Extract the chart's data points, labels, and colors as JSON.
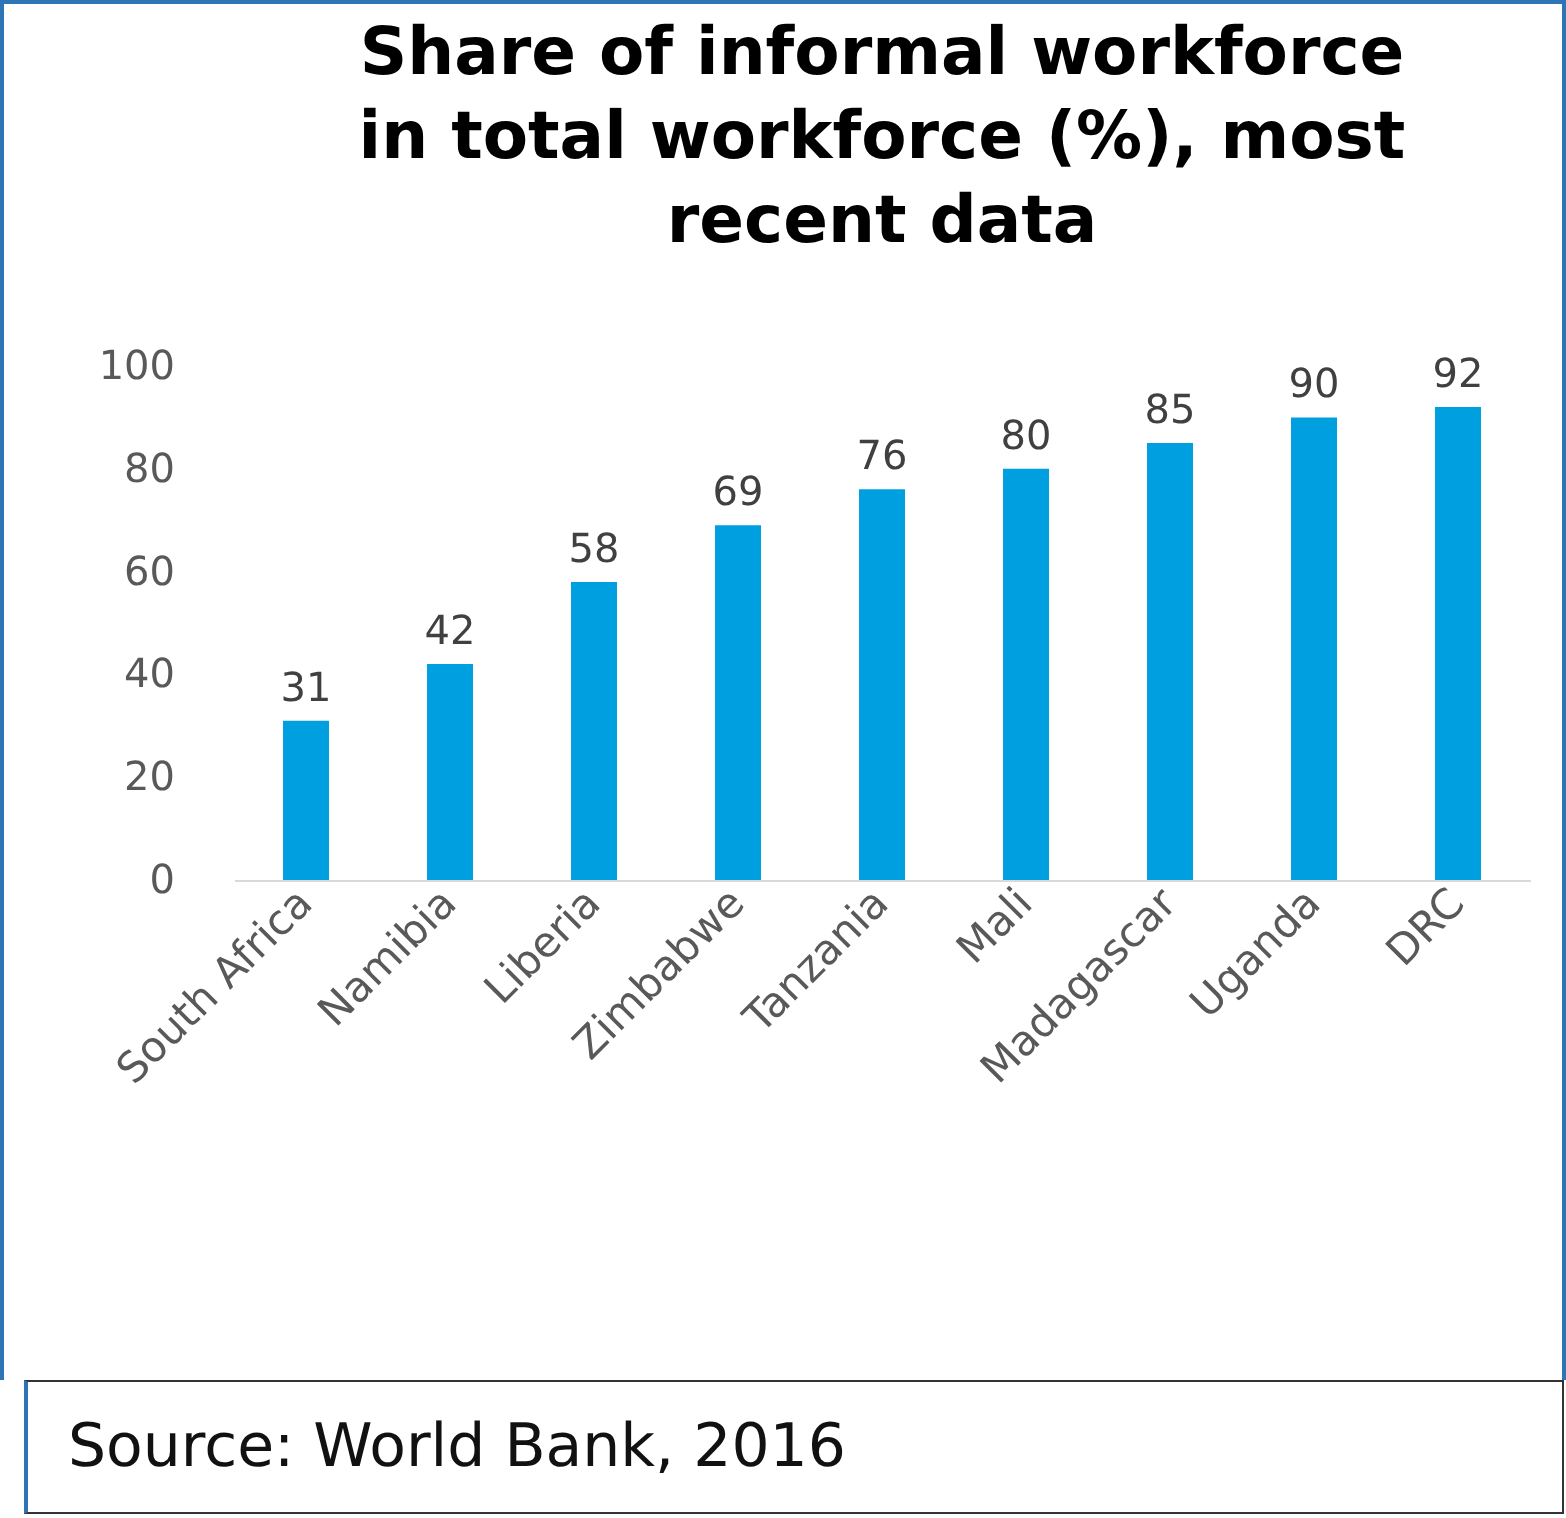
{
  "chart_data": {
    "type": "bar",
    "title": "Share of informal workforce in total workforce (%), most recent data",
    "categories": [
      "South Africa",
      "Namibia",
      "Liberia",
      "Zimbabwe",
      "Tanzania",
      "Mali",
      "Madagascar",
      "Uganda",
      "DRC"
    ],
    "values": [
      31,
      42,
      58,
      69,
      76,
      80,
      85,
      90,
      92
    ],
    "color": "#009fe0",
    "ylim": [
      0,
      100
    ],
    "yticks": [
      0,
      20,
      40,
      60,
      80,
      100
    ],
    "grid": false,
    "data_labels": true,
    "annotations": [
      "Source: World Bank, 2016"
    ]
  }
}
